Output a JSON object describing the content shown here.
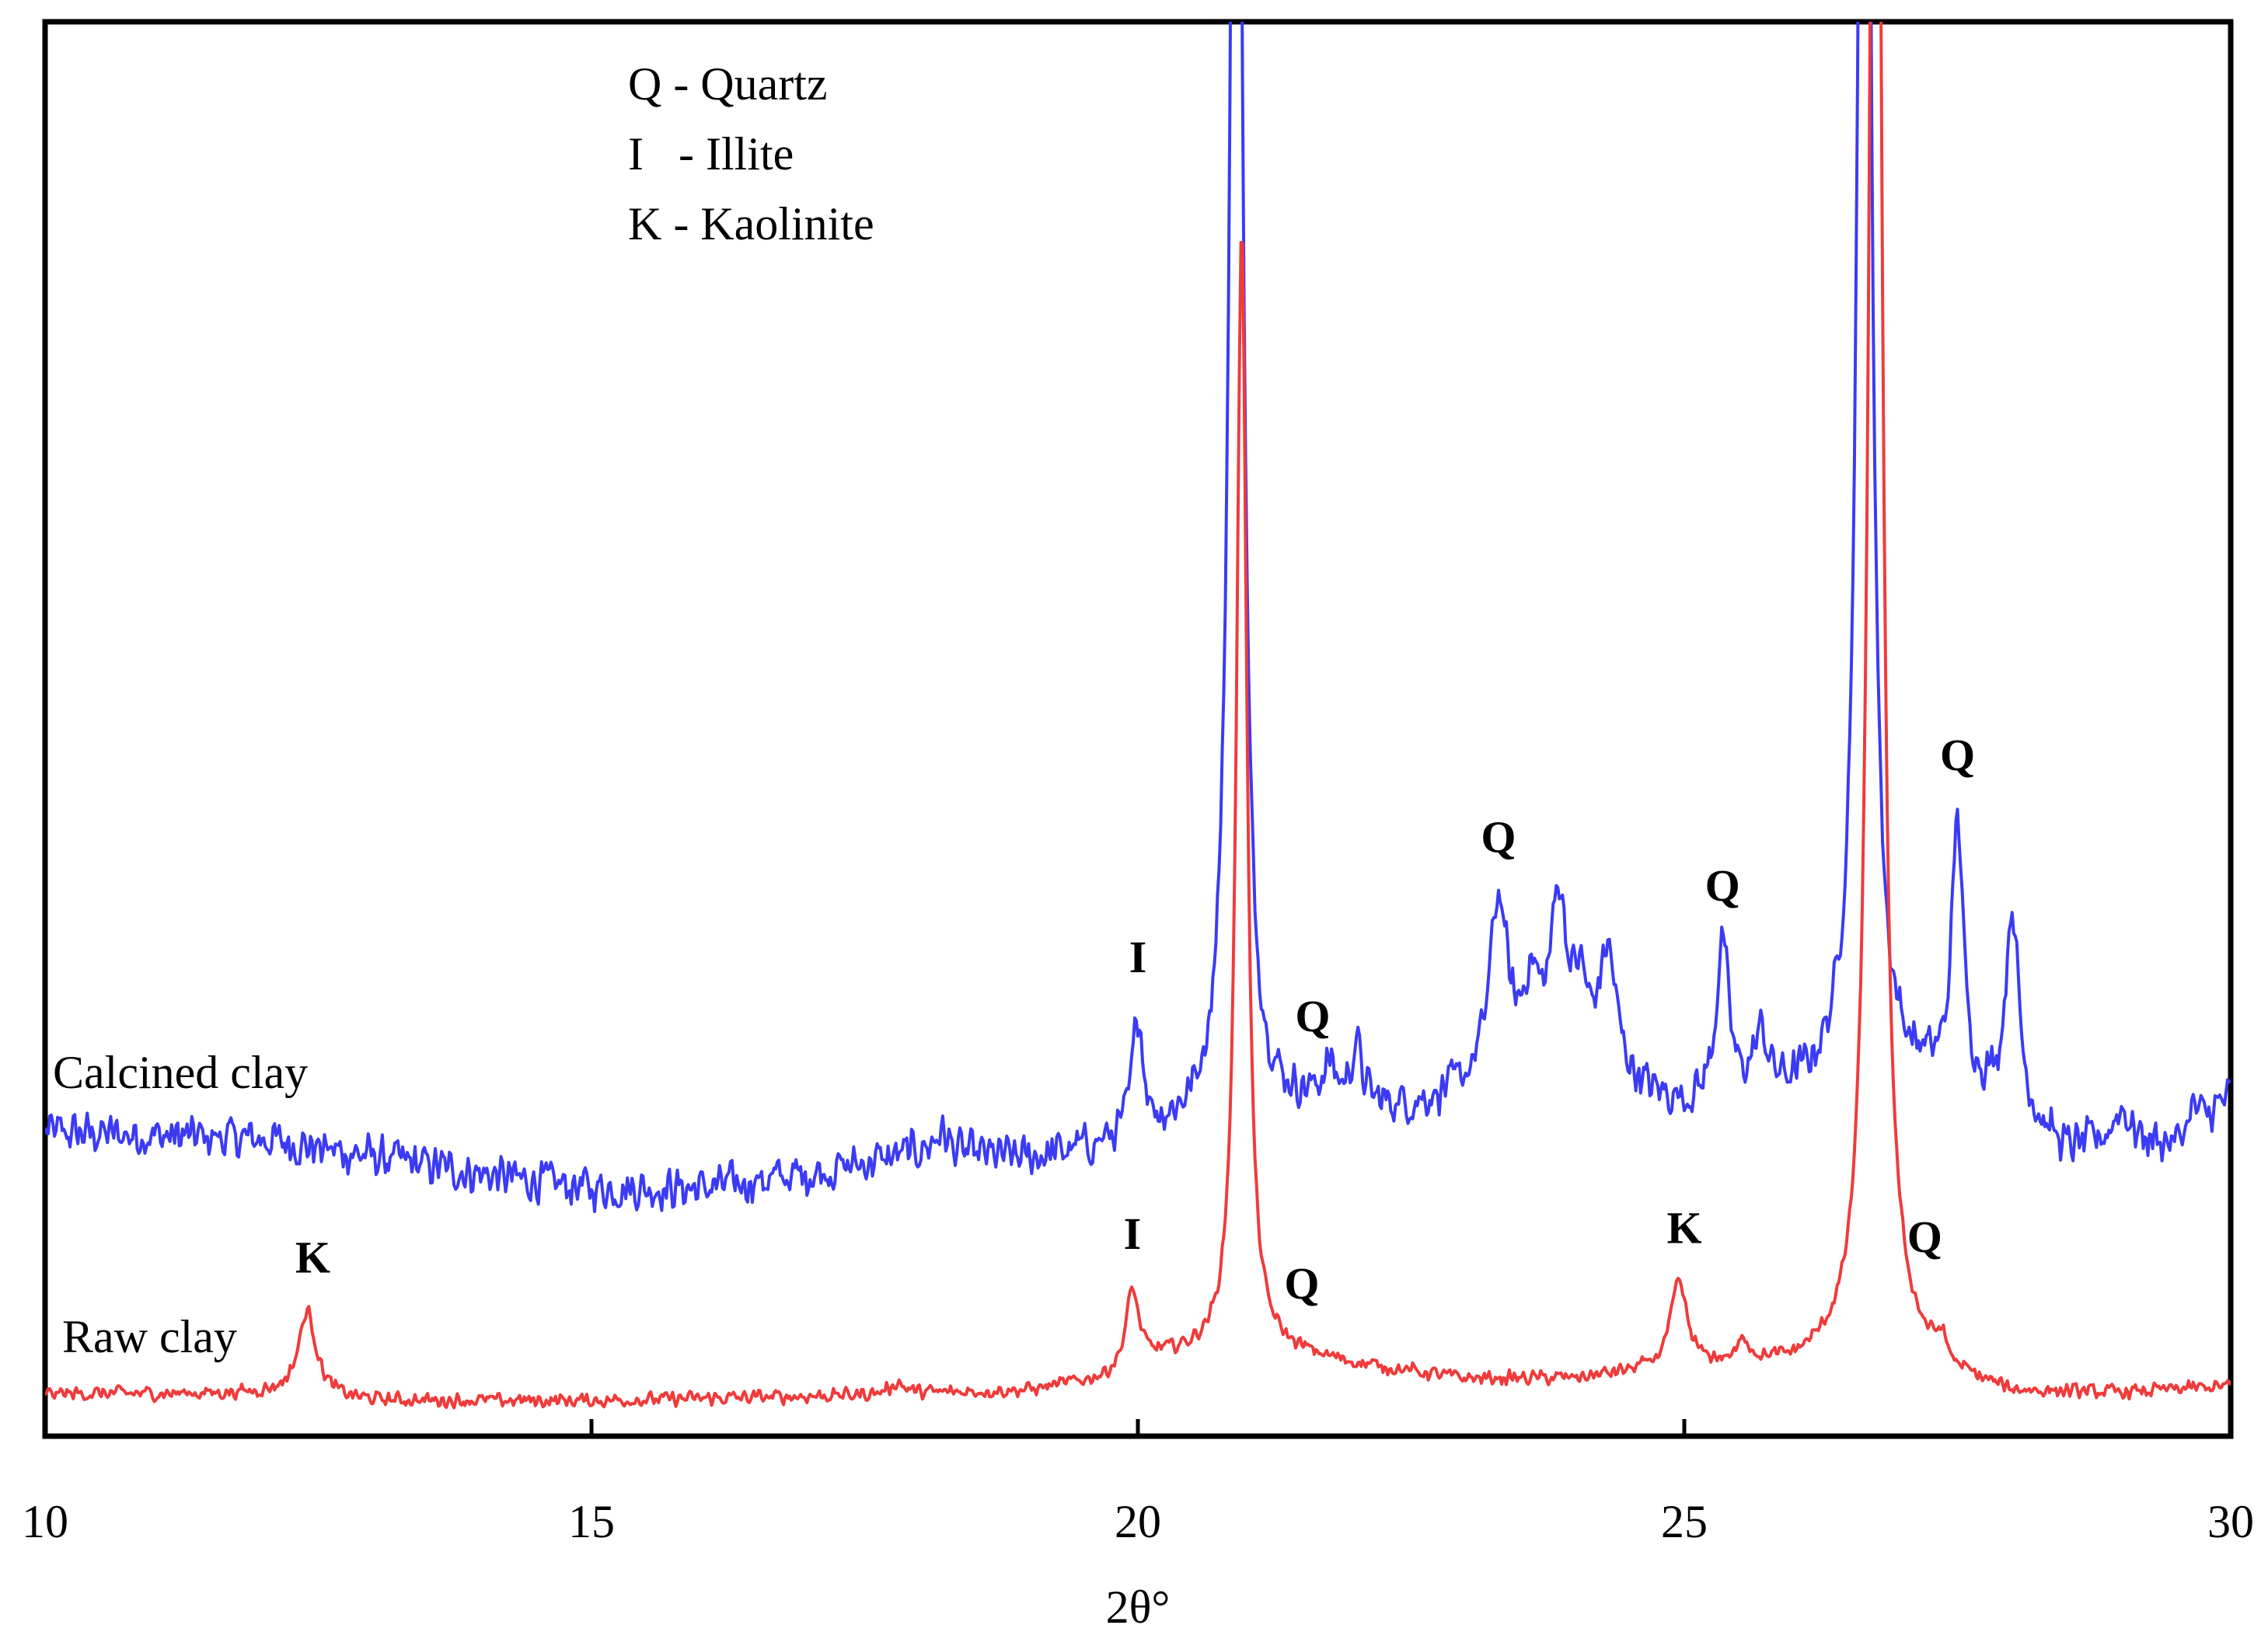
{
  "chart_data": {
    "type": "line",
    "title": "",
    "xlabel": "2θ°",
    "ylabel": "",
    "xlim": [
      10,
      30
    ],
    "ylim": [
      0,
      100
    ],
    "x_ticks": [
      "10",
      "15",
      "20",
      "25",
      "30"
    ],
    "x_tick_values": [
      10,
      15,
      20,
      25,
      30
    ],
    "legend": [
      "Q - Quartz",
      "I   - Illite",
      "K - Kaolinite"
    ],
    "colors": {
      "calcined": "#3b3bf5",
      "raw": "#ef3b3b",
      "axis": "#000000"
    },
    "series": [
      {
        "name": "Calcined clay",
        "color": "#3b3bf5",
        "noise": 1.8,
        "baseline": [
          [
            10,
            21.5
          ],
          [
            12,
            21
          ],
          [
            14,
            18.5
          ],
          [
            15,
            17.5
          ],
          [
            16,
            17.5
          ],
          [
            17,
            18.5
          ],
          [
            18,
            20
          ],
          [
            19,
            19.5
          ],
          [
            19.8,
            20.5
          ],
          [
            20.6,
            22
          ],
          [
            21.5,
            23
          ],
          [
            22.5,
            23
          ],
          [
            23,
            24
          ],
          [
            24,
            25
          ],
          [
            25,
            23
          ],
          [
            26,
            24
          ],
          [
            26.4,
            25
          ],
          [
            27.2,
            25
          ],
          [
            28,
            23
          ],
          [
            28.5,
            20
          ],
          [
            29,
            21
          ],
          [
            29.5,
            20.5
          ],
          [
            30,
            24
          ]
        ],
        "peaks": [
          {
            "x": 18.2,
            "h": 1.5,
            "w": 0.08
          },
          {
            "x": 20.0,
            "h": 8.5,
            "w": 0.06
          },
          {
            "x": 20.9,
            "h": 140,
            "w": 0.06
          },
          {
            "x": 21.75,
            "h": 2.5,
            "w": 0.08
          },
          {
            "x": 22.0,
            "h": 4,
            "w": 0.06
          },
          {
            "x": 23.3,
            "h": 13,
            "w": 0.1
          },
          {
            "x": 23.6,
            "h": 6,
            "w": 0.1
          },
          {
            "x": 23.85,
            "h": 12,
            "w": 0.09
          },
          {
            "x": 24.05,
            "h": 5,
            "w": 0.08
          },
          {
            "x": 24.3,
            "h": 9,
            "w": 0.1
          },
          {
            "x": 25.35,
            "h": 11,
            "w": 0.07
          },
          {
            "x": 25.7,
            "h": 4,
            "w": 0.08
          },
          {
            "x": 26.65,
            "h": 150,
            "w": 0.06
          },
          {
            "x": 27.5,
            "h": 19,
            "w": 0.06
          },
          {
            "x": 28.0,
            "h": 14,
            "w": 0.07
          },
          {
            "x": 29.0,
            "h": 2,
            "w": 0.08
          },
          {
            "x": 29.65,
            "h": 1.5,
            "w": 0.06
          }
        ],
        "label": "Calcined clay",
        "peak_labels": [
          {
            "text": "I",
            "x": 20.0
          },
          {
            "text": "Q",
            "x": 21.6
          },
          {
            "text": "Q",
            "x": 23.3
          },
          {
            "text": "Q",
            "x": 25.35
          },
          {
            "text": "Q",
            "x": 27.5
          }
        ]
      },
      {
        "name": "Raw clay",
        "color": "#ef3b3b",
        "noise": 0.6,
        "baseline": [
          [
            10,
            3
          ],
          [
            12,
            3
          ],
          [
            13,
            2.5
          ],
          [
            15,
            2.5
          ],
          [
            17,
            2.8
          ],
          [
            18,
            3
          ],
          [
            19,
            3.2
          ],
          [
            19.7,
            4
          ],
          [
            20.2,
            5.5
          ],
          [
            20.8,
            6
          ],
          [
            21.2,
            6
          ],
          [
            22,
            5
          ],
          [
            23,
            4
          ],
          [
            24,
            4
          ],
          [
            24.6,
            4.5
          ],
          [
            25.5,
            5
          ],
          [
            26,
            5
          ],
          [
            26.5,
            6
          ],
          [
            27,
            6
          ],
          [
            27.5,
            4
          ],
          [
            28,
            3
          ],
          [
            29,
            3
          ],
          [
            30,
            3.5
          ]
        ],
        "peaks": [
          {
            "x": 12.4,
            "h": 6,
            "w": 0.1
          },
          {
            "x": 17.8,
            "h": 0.8,
            "w": 0.08
          },
          {
            "x": 19.95,
            "h": 5.5,
            "w": 0.07
          },
          {
            "x": 20.95,
            "h": 80,
            "w": 0.055
          },
          {
            "x": 24.95,
            "h": 6,
            "w": 0.09
          },
          {
            "x": 25.55,
            "h": 1.5,
            "w": 0.06
          },
          {
            "x": 26.75,
            "h": 160,
            "w": 0.06
          },
          {
            "x": 27.35,
            "h": 1.5,
            "w": 0.06
          }
        ],
        "label": "Raw clay",
        "peak_labels": [
          {
            "text": "K",
            "x": 12.45
          },
          {
            "text": "I",
            "x": 19.95
          },
          {
            "text": "Q",
            "x": 21.5
          },
          {
            "text": "K",
            "x": 25.0
          },
          {
            "text": "Q",
            "x": 27.2
          }
        ]
      }
    ]
  }
}
